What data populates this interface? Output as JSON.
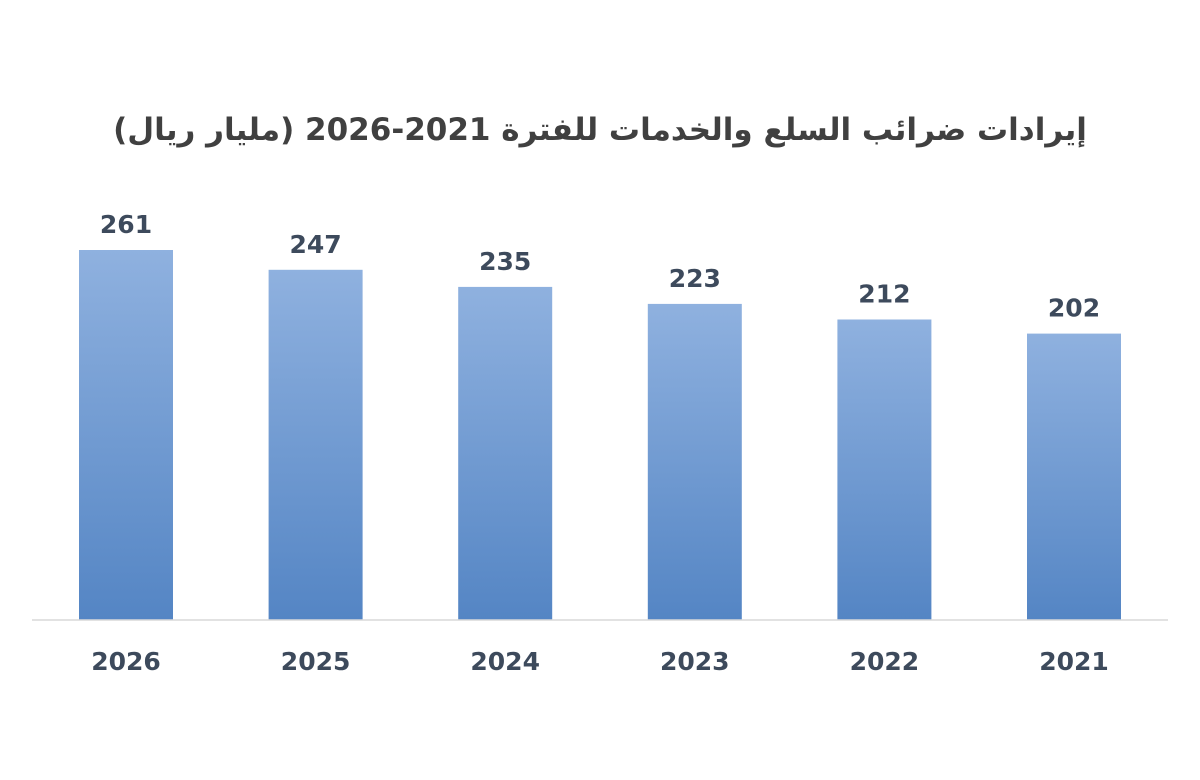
{
  "chart_data": {
    "type": "bar",
    "title": "إيرادات ضرائب السلع والخدمات للفترة 2021-2026 (مليار ريال)",
    "categories": [
      "2026",
      "2025",
      "2024",
      "2023",
      "2022",
      "2021"
    ],
    "values": [
      261,
      247,
      235,
      223,
      212,
      202
    ],
    "xlabel": "",
    "ylabel": "",
    "ylim": [
      0,
      261
    ],
    "grid": false,
    "legend": "none",
    "data_labels": true,
    "colors": {
      "bar_top": "#8fb1df",
      "bar_bottom": "#5485c4",
      "axis": "#d9d9d9",
      "text": "#3d4a5c"
    }
  }
}
